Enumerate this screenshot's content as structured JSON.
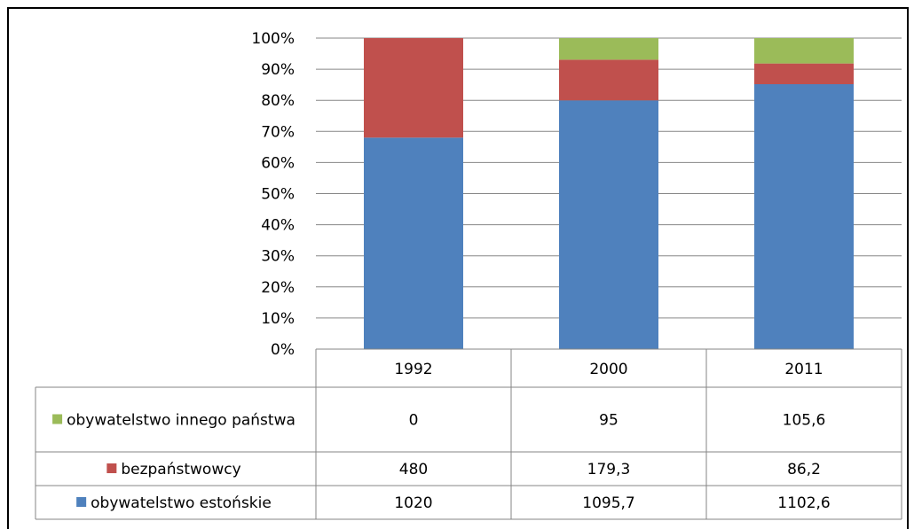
{
  "chart_data": {
    "type": "bar",
    "stacked": "percent",
    "categories": [
      "1992",
      "2000",
      "2011"
    ],
    "series": [
      {
        "name": "obywatelstwo estońskie",
        "values": [
          1020,
          1095.7,
          1102.6
        ],
        "labels": [
          "1020",
          "1095,7",
          "1102,6"
        ],
        "color": "#4f81bd"
      },
      {
        "name": "bezpaństwowcy",
        "values": [
          480,
          179.3,
          86.2
        ],
        "labels": [
          "480",
          "179,3",
          "86,2"
        ],
        "color": "#c0504d"
      },
      {
        "name": "obywatelstwo innego państwa",
        "values": [
          0,
          95,
          105.6
        ],
        "labels": [
          "0",
          "95",
          "105,6"
        ],
        "color": "#9bbb59"
      }
    ],
    "table_row_order": [
      2,
      1,
      0
    ],
    "yticks": [
      "0%",
      "10%",
      "20%",
      "30%",
      "40%",
      "50%",
      "60%",
      "70%",
      "80%",
      "90%",
      "100%"
    ],
    "ylim": [
      0,
      100
    ],
    "grid": true,
    "legend": "data-table",
    "title": "",
    "xlabel": "",
    "ylabel": ""
  }
}
